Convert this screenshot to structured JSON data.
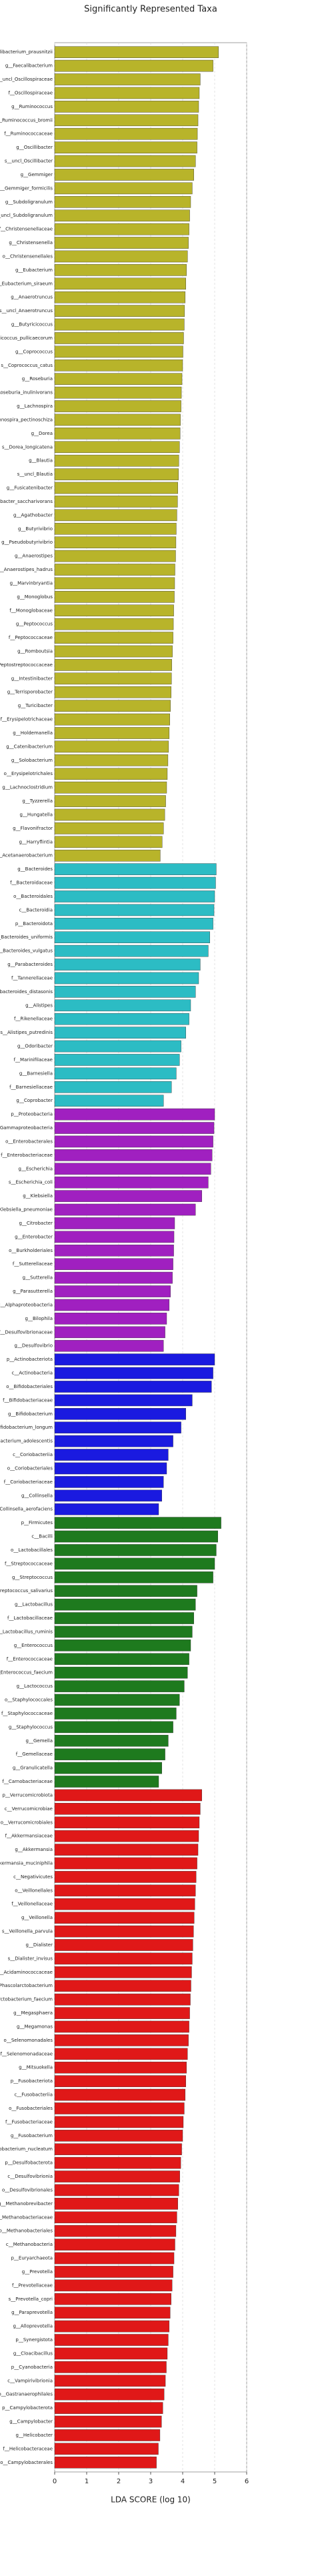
{
  "chart_data": {
    "type": "hbar",
    "title": "Significantly Represented Taxa",
    "xlabel": "LDA SCORE (log 10)",
    "xlim": [
      0,
      6
    ],
    "xticks": [
      0,
      1,
      2,
      3,
      4,
      5,
      6
    ],
    "grid": true,
    "groups": [
      {
        "color": "#b8b42a",
        "categories": [
          "s__Faecalibacterium_prausnitzii",
          "g__Faecalibacterium",
          "s__uncl_Oscillospiraceae",
          "f__Oscillospiraceae",
          "g__Ruminococcus",
          "s__Ruminococcus_bromii",
          "f__Ruminococcaceae",
          "g__Oscillibacter",
          "s__uncl_Oscillibacter",
          "g__Gemmiger",
          "s__Gemmiger_formicilis",
          "g__Subdoligranulum",
          "s__uncl_Subdoligranulum",
          "f__Christensenellaceae",
          "g__Christensenella",
          "o__Christensenellales",
          "g__Eubacterium",
          "s__Eubacterium_siraeum",
          "g__Anaerotruncus",
          "s__uncl_Anaerotruncus",
          "g__Butyricicoccus",
          "s__Butyricicoccus_pullicaecorum",
          "g__Coprococcus",
          "s__Coprococcus_catus",
          "g__Roseburia",
          "s__Roseburia_inulinivorans",
          "g__Lachnospira",
          "s__Lachnospira_pectinoschiza",
          "g__Dorea",
          "s__Dorea_longicatena",
          "g__Blautia",
          "s__uncl_Blautia",
          "g__Fusicatenibacter",
          "s__Fusicatenibacter_saccharivorans",
          "g__Agathobacter",
          "g__Butyrivibrio",
          "g__Pseudobutyrivibrio",
          "g__Anaerostipes",
          "s__Anaerostipes_hadrus",
          "g__Marvinbryantia",
          "g__Monoglobus",
          "f__Monoglobaceae",
          "g__Peptococcus",
          "f__Peptococcaceae",
          "g__Romboutsia",
          "f__Peptostreptococcaceae",
          "g__Intestinibacter",
          "g__Terrisporobacter",
          "g__Turicibacter",
          "f__Erysipelotrichaceae",
          "g__Holdemanella",
          "g__Catenibacterium",
          "g__Solobacterium",
          "o__Erysipelotrichales",
          "g__Lachnoclostridium",
          "g__Tyzzerella",
          "g__Hungatella",
          "g__Flavonifractor",
          "g__Harryflintia",
          "g__Acetanaerobacterium"
        ],
        "values": [
          5.12,
          4.95,
          4.55,
          4.52,
          4.5,
          4.48,
          4.46,
          4.45,
          4.4,
          4.35,
          4.3,
          4.25,
          4.22,
          4.2,
          4.18,
          4.15,
          4.12,
          4.1,
          4.08,
          4.06,
          4.05,
          4.03,
          4.01,
          4.0,
          3.98,
          3.96,
          3.95,
          3.93,
          3.92,
          3.9,
          3.88,
          3.87,
          3.85,
          3.84,
          3.82,
          3.8,
          3.79,
          3.78,
          3.76,
          3.75,
          3.74,
          3.72,
          3.71,
          3.7,
          3.68,
          3.66,
          3.65,
          3.64,
          3.62,
          3.6,
          3.58,
          3.56,
          3.54,
          3.52,
          3.5,
          3.47,
          3.44,
          3.4,
          3.36,
          3.3
        ]
      },
      {
        "color": "#2cbcc4",
        "categories": [
          "g__Bacteroides",
          "f__Bacteroidaceae",
          "o__Bacteroidales",
          "c__Bacteroidia",
          "p__Bacteroidota",
          "s__Bacteroides_uniformis",
          "s__Bacteroides_vulgatus",
          "g__Parabacteroides",
          "f__Tannerellaceae",
          "s__Parabacteroides_distasonis",
          "g__Alistipes",
          "f__Rikenellaceae",
          "s__Alistipes_putredinis",
          "g__Odoribacter",
          "f__Marinifilaceae",
          "g__Barnesiella",
          "f__Barnesiellaceae",
          "g__Coprobacter"
        ],
        "values": [
          5.05,
          5.03,
          5.0,
          4.98,
          4.95,
          4.85,
          4.8,
          4.55,
          4.5,
          4.4,
          4.25,
          4.2,
          4.1,
          3.95,
          3.9,
          3.8,
          3.65,
          3.4
        ]
      },
      {
        "color": "#a020c0",
        "categories": [
          "p__Proteobacteria",
          "c__Gammaproteobacteria",
          "o__Enterobacterales",
          "f__Enterobacteriaceae",
          "g__Escherichia",
          "s__Escherichia_coli",
          "g__Klebsiella",
          "s__Klebsiella_pneumoniae",
          "g__Citrobacter",
          "g__Enterobacter",
          "o__Burkholderiales",
          "f__Sutterellaceae",
          "g__Sutterella",
          "g__Parasutterella",
          "c__Alphaproteobacteria",
          "g__Bilophila",
          "f__Desulfovibrionaceae",
          "g__Desulfovibrio"
        ],
        "values": [
          5.0,
          4.98,
          4.95,
          4.92,
          4.88,
          4.8,
          4.6,
          4.4,
          3.75,
          3.73,
          3.72,
          3.7,
          3.68,
          3.62,
          3.58,
          3.5,
          3.45,
          3.4
        ]
      },
      {
        "color": "#1a1ae0",
        "categories": [
          "p__Actinobacteriota",
          "c__Actinobacteria",
          "o__Bifidobacteriales",
          "f__Bifidobacteriaceae",
          "g__Bifidobacterium",
          "s__Bifidobacterium_longum",
          "s__Bifidobacterium_adolescentis",
          "c__Coriobacteriia",
          "o__Coriobacteriales",
          "f__Coriobacteriaceae",
          "g__Collinsella",
          "s__Collinsella_aerofaciens"
        ],
        "values": [
          5.0,
          4.95,
          4.9,
          4.3,
          4.1,
          3.95,
          3.7,
          3.55,
          3.5,
          3.4,
          3.35,
          3.25
        ]
      },
      {
        "color": "#1e7a1e",
        "categories": [
          "p__Firmicutes",
          "c__Bacilli",
          "o__Lactobacillales",
          "f__Streptococcaceae",
          "g__Streptococcus",
          "s__Streptococcus_salivarius",
          "g__Lactobacillus",
          "f__Lactobacillaceae",
          "s__Lactobacillus_ruminis",
          "g__Enterococcus",
          "f__Enterococcaceae",
          "s__Enterococcus_faecium",
          "g__Lactococcus",
          "o__Staphylococcales",
          "f__Staphylococcaceae",
          "g__Staphylococcus",
          "g__Gemella",
          "f__Gemellaceae",
          "g__Granulicatella",
          "f__Carnobacteriaceae"
        ],
        "values": [
          5.2,
          5.1,
          5.05,
          5.0,
          4.95,
          4.45,
          4.4,
          4.35,
          4.3,
          4.25,
          4.2,
          4.15,
          4.05,
          3.9,
          3.8,
          3.7,
          3.55,
          3.45,
          3.35,
          3.25
        ]
      },
      {
        "color": "#e01818",
        "categories": [
          "p__Verrucomicrobiota",
          "c__Verrucomicrobiae",
          "o__Verrucomicrobiales",
          "f__Akkermansiaceae",
          "g__Akkermansia",
          "s__Akkermansia_muciniphila",
          "c__Negativicutes",
          "o__Veillonellales",
          "f__Veillonellaceae",
          "g__Veillonella",
          "s__Veillonella_parvula",
          "g__Dialister",
          "s__Dialister_invisus",
          "f__Acidaminococcaceae",
          "g__Phascolarctobacterium",
          "s__Phascolarctobacterium_faecium",
          "g__Megasphaera",
          "g__Megamonas",
          "o__Selenomonadales",
          "f__Selenomonadaceae",
          "g__Mitsuokella",
          "p__Fusobacteriota",
          "c__Fusobacteriia",
          "o__Fusobacteriales",
          "f__Fusobacteriaceae",
          "g__Fusobacterium",
          "s__Fusobacterium_nucleatum",
          "p__Desulfobacterota",
          "c__Desulfovibrionia",
          "o__Desulfovibrionales",
          "g__Methanobrevibacter",
          "f__Methanobacteriaceae",
          "o__Methanobacteriales",
          "c__Methanobacteria",
          "p__Euryarchaeota",
          "g__Prevotella",
          "f__Prevotellaceae",
          "s__Prevotella_copri",
          "g__Paraprevotella",
          "g__Alloprevotella",
          "p__Synergistota",
          "g__Cloacibacillus",
          "p__Cyanobacteria",
          "c__Vampirivibrionia",
          "o__Gastranaerophilales",
          "p__Campylobacterota",
          "g__Campylobacter",
          "g__Helicobacter",
          "f__Helicobacteraceae",
          "o__Campylobacterales"
        ],
        "values": [
          4.6,
          4.55,
          4.52,
          4.5,
          4.48,
          4.45,
          4.42,
          4.4,
          4.38,
          4.36,
          4.34,
          4.32,
          4.3,
          4.28,
          4.26,
          4.24,
          4.22,
          4.2,
          4.18,
          4.15,
          4.12,
          4.1,
          4.08,
          4.05,
          4.02,
          4.0,
          3.97,
          3.94,
          3.91,
          3.88,
          3.85,
          3.82,
          3.79,
          3.76,
          3.73,
          3.7,
          3.67,
          3.64,
          3.61,
          3.58,
          3.55,
          3.52,
          3.49,
          3.46,
          3.42,
          3.38,
          3.34,
          3.29,
          3.24,
          3.18
        ]
      }
    ]
  }
}
